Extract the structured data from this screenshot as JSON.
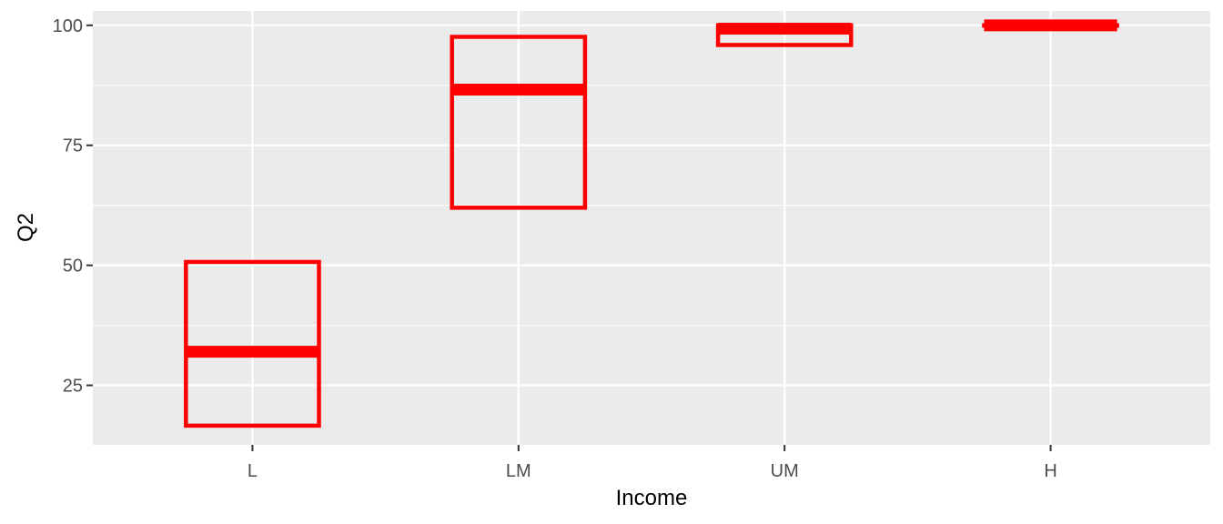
{
  "chart_data": {
    "type": "boxplot",
    "title": "",
    "xlabel": "Income",
    "ylabel": "Q2",
    "categories": [
      "L",
      "LM",
      "UM",
      "H"
    ],
    "boxes": [
      {
        "category": "L",
        "q1": 16.6,
        "median": 32.0,
        "q3": 50.7
      },
      {
        "category": "LM",
        "q1": 62.0,
        "median": 86.6,
        "q3": 97.6
      },
      {
        "category": "UM",
        "q1": 95.9,
        "median": 99.3,
        "q3": 100.0
      },
      {
        "category": "H",
        "q1": 100.0,
        "median": 100.0,
        "q3": 100.0
      }
    ],
    "ylim": [
      12.6,
      103.0
    ],
    "yticks": [
      25,
      50,
      75,
      100
    ],
    "ytick_labels": [
      "25",
      "50",
      "75",
      "100"
    ],
    "grid": true,
    "legend": "none",
    "colors": {
      "panel": "#EBEBEB",
      "grid": "#FFFFFF",
      "box": "#FF0000",
      "tick_text": "#4D4D4D",
      "tick_mark": "#333333",
      "title_text": "#000000"
    }
  }
}
